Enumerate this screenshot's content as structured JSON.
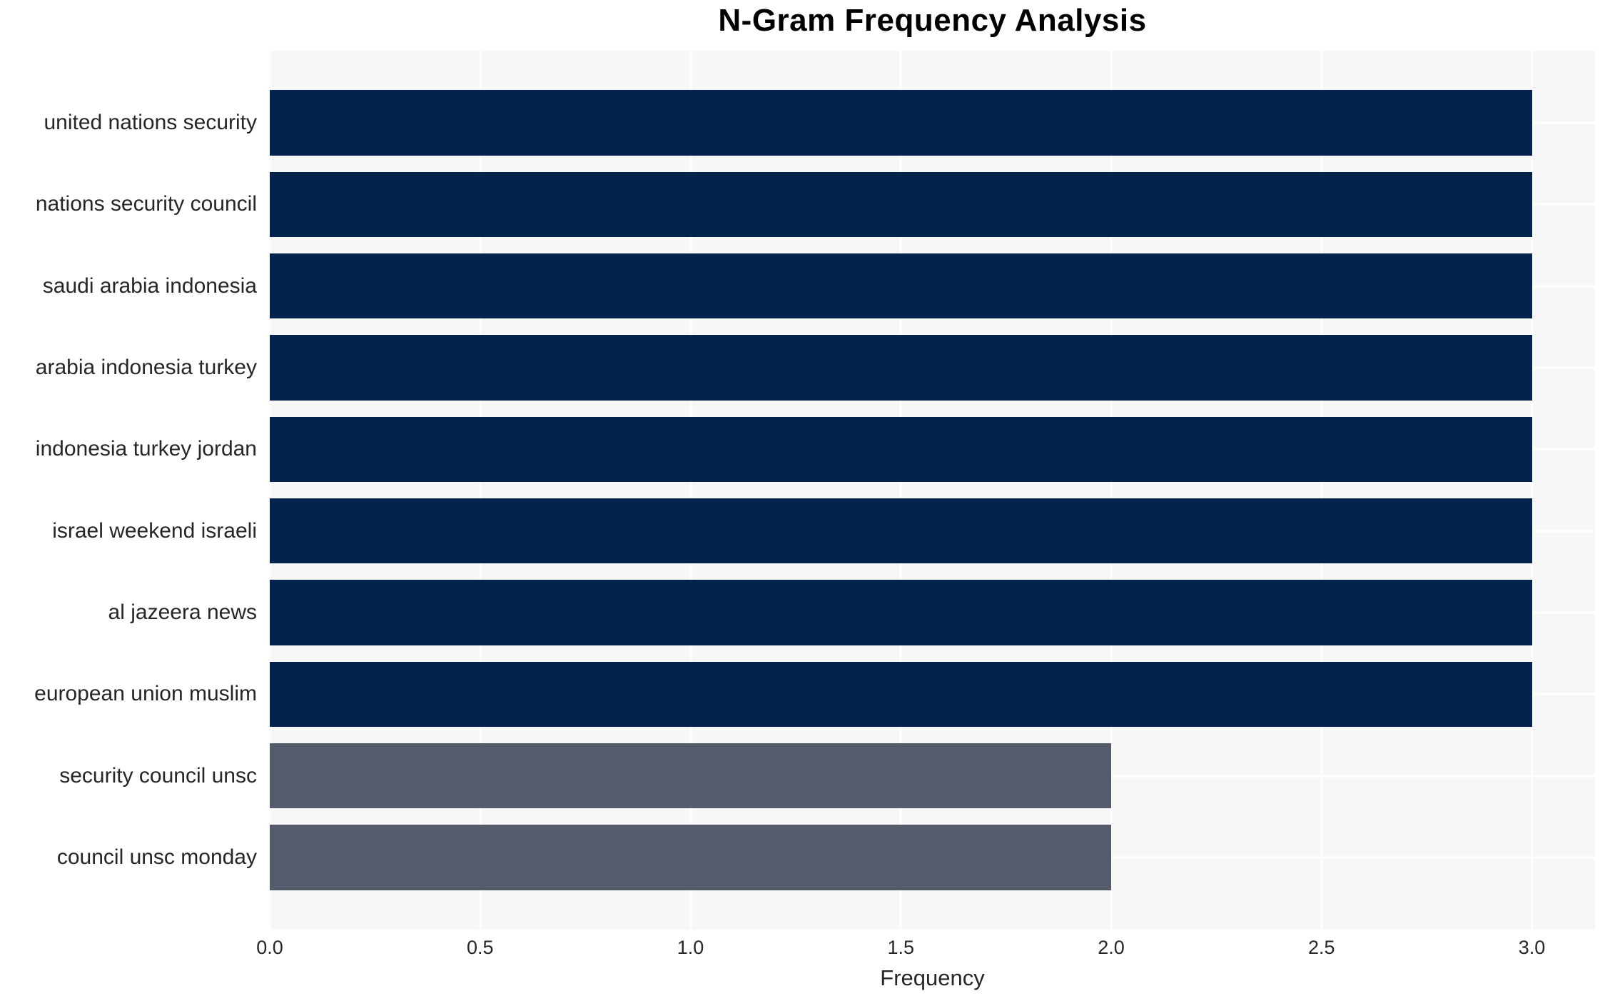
{
  "chart_data": {
    "type": "bar",
    "orientation": "horizontal",
    "title": "N-Gram Frequency Analysis",
    "xlabel": "Frequency",
    "ylabel": "",
    "categories": [
      "united nations security",
      "nations security council",
      "saudi arabia indonesia",
      "arabia indonesia turkey",
      "indonesia turkey jordan",
      "israel weekend israeli",
      "al jazeera news",
      "european union muslim",
      "security council unsc",
      "council unsc monday"
    ],
    "values": [
      3,
      3,
      3,
      3,
      3,
      3,
      3,
      3,
      2,
      2
    ],
    "bar_colors": [
      "#02234b",
      "#02234b",
      "#02234b",
      "#02234b",
      "#02234b",
      "#02234b",
      "#02234b",
      "#02234b",
      "#565b6b",
      "#565b6b"
    ],
    "xlim": [
      0,
      3.15
    ],
    "xticks": [
      0.0,
      0.5,
      1.0,
      1.5,
      2.0,
      2.5,
      3.0
    ],
    "xtick_labels": [
      "0.0",
      "0.5",
      "1.0",
      "1.5",
      "2.0",
      "2.5",
      "3.0"
    ],
    "grid": true,
    "legend": false,
    "colors": {
      "bar_high": "#02234b",
      "bar_low": "#565b6b",
      "plot_background": "#f7f7f7",
      "grid_line": "#ffffff",
      "tick_text": "#262626",
      "title_text": "#000000",
      "page_background": "#ffffff"
    }
  }
}
